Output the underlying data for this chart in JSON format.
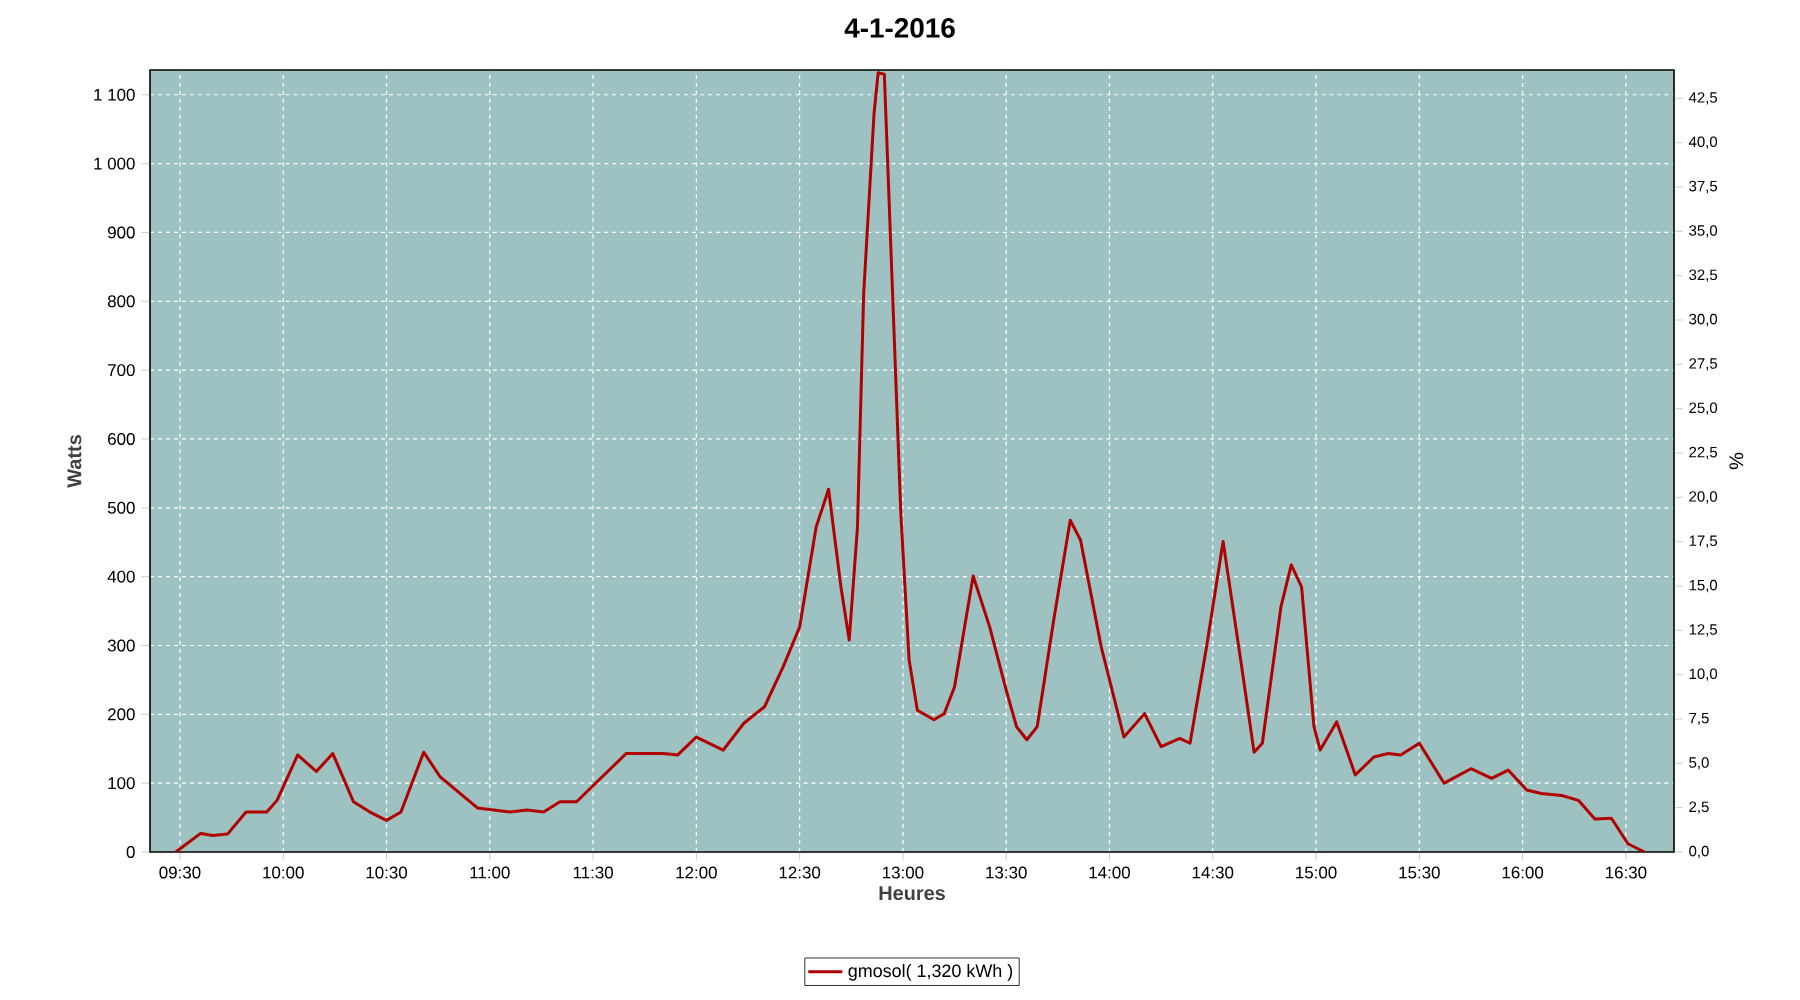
{
  "chart_data": {
    "type": "line",
    "title": "4-1-2016",
    "xlabel": "Heures",
    "ylabel": "Watts",
    "y2label": "%",
    "xlim": [
      9.355,
      16.733
    ],
    "ylim": [
      0,
      1136
    ],
    "y2lim": [
      0,
      44.1
    ],
    "xticks": [
      {
        "value": 9.5,
        "label": "09:30"
      },
      {
        "value": 10,
        "label": "10:00"
      },
      {
        "value": 10.5,
        "label": "10:30"
      },
      {
        "value": 11,
        "label": "11:00"
      },
      {
        "value": 11.5,
        "label": "11:30"
      },
      {
        "value": 12,
        "label": "12:00"
      },
      {
        "value": 12.5,
        "label": "12:30"
      },
      {
        "value": 13,
        "label": "13:00"
      },
      {
        "value": 13.5,
        "label": "13:30"
      },
      {
        "value": 14,
        "label": "14:00"
      },
      {
        "value": 14.5,
        "label": "14:30"
      },
      {
        "value": 15,
        "label": "15:00"
      },
      {
        "value": 15.5,
        "label": "15:30"
      },
      {
        "value": 16,
        "label": "16:00"
      },
      {
        "value": 16.5,
        "label": "16:30"
      }
    ],
    "yticks": [
      0,
      100,
      200,
      300,
      400,
      500,
      600,
      700,
      800,
      900,
      {
        "value": 1000,
        "label": "1 000"
      },
      {
        "value": 1100,
        "label": "1 100"
      }
    ],
    "y2ticks": [
      {
        "value": 0,
        "label": "0,0"
      },
      {
        "value": 2.5,
        "label": "2,5"
      },
      {
        "value": 5,
        "label": "5,0"
      },
      {
        "value": 7.5,
        "label": "7,5"
      },
      {
        "value": 10,
        "label": "10,0"
      },
      {
        "value": 12.5,
        "label": "12,5"
      },
      {
        "value": 15,
        "label": "15,0"
      },
      {
        "value": 17.5,
        "label": "17,5"
      },
      {
        "value": 20,
        "label": "20,0"
      },
      {
        "value": 22.5,
        "label": "22,5"
      },
      {
        "value": 25,
        "label": "25,0"
      },
      {
        "value": 27.5,
        "label": "27,5"
      },
      {
        "value": 30,
        "label": "30,0"
      },
      {
        "value": 32.5,
        "label": "32,5"
      },
      {
        "value": 35,
        "label": "35,0"
      },
      {
        "value": 37.5,
        "label": "37,5"
      },
      {
        "value": 40,
        "label": "40,0"
      },
      {
        "value": 42.5,
        "label": "42,5"
      }
    ],
    "grid": true,
    "legend": "bottom",
    "series": [
      {
        "name": "gmosol( 1,320 kWh )",
        "color": "#b00000",
        "x": [
          9.48,
          9.6,
          9.66,
          9.73,
          9.82,
          9.92,
          9.97,
          10.07,
          10.16,
          10.24,
          10.34,
          10.42,
          10.5,
          10.57,
          10.68,
          10.76,
          10.94,
          11.1,
          11.18,
          11.26,
          11.34,
          11.42,
          11.66,
          11.84,
          11.91,
          12.0,
          12.13,
          12.23,
          12.33,
          12.42,
          12.5,
          12.58,
          12.64,
          12.7,
          12.74,
          12.78,
          12.81,
          12.86,
          12.88,
          12.91,
          12.95,
          12.99,
          13.03,
          13.07,
          13.15,
          13.2,
          13.25,
          13.34,
          13.42,
          13.5,
          13.55,
          13.6,
          13.65,
          13.73,
          13.81,
          13.86,
          13.96,
          14.07,
          14.17,
          14.25,
          14.34,
          14.39,
          14.47,
          14.55,
          14.64,
          14.7,
          14.74,
          14.83,
          14.88,
          14.93,
          14.99,
          15.02,
          15.1,
          15.19,
          15.28,
          15.35,
          15.41,
          15.5,
          15.62,
          15.75,
          15.85,
          15.93,
          16.02,
          16.09,
          16.19,
          16.27,
          16.35,
          16.43,
          16.51,
          16.59
        ],
        "values": [
          0,
          27,
          24,
          26,
          58,
          58,
          75,
          141,
          117,
          143,
          73,
          58,
          46,
          58,
          145,
          109,
          64,
          58,
          61,
          58,
          73,
          73,
          143,
          143,
          141,
          167,
          148,
          187,
          211,
          269,
          327,
          472,
          527,
          385,
          308,
          472,
          811,
          1072,
          1132,
          1130,
          811,
          491,
          279,
          206,
          192,
          201,
          240,
          401,
          327,
          235,
          182,
          163,
          182,
          337,
          482,
          453,
          298,
          167,
          201,
          153,
          165,
          158,
          298,
          451,
          269,
          145,
          158,
          356,
          417,
          385,
          182,
          148,
          189,
          112,
          138,
          143,
          141,
          158,
          100,
          121,
          107,
          119,
          90,
          85,
          82,
          75,
          48,
          49,
          12,
          0
        ]
      }
    ]
  }
}
